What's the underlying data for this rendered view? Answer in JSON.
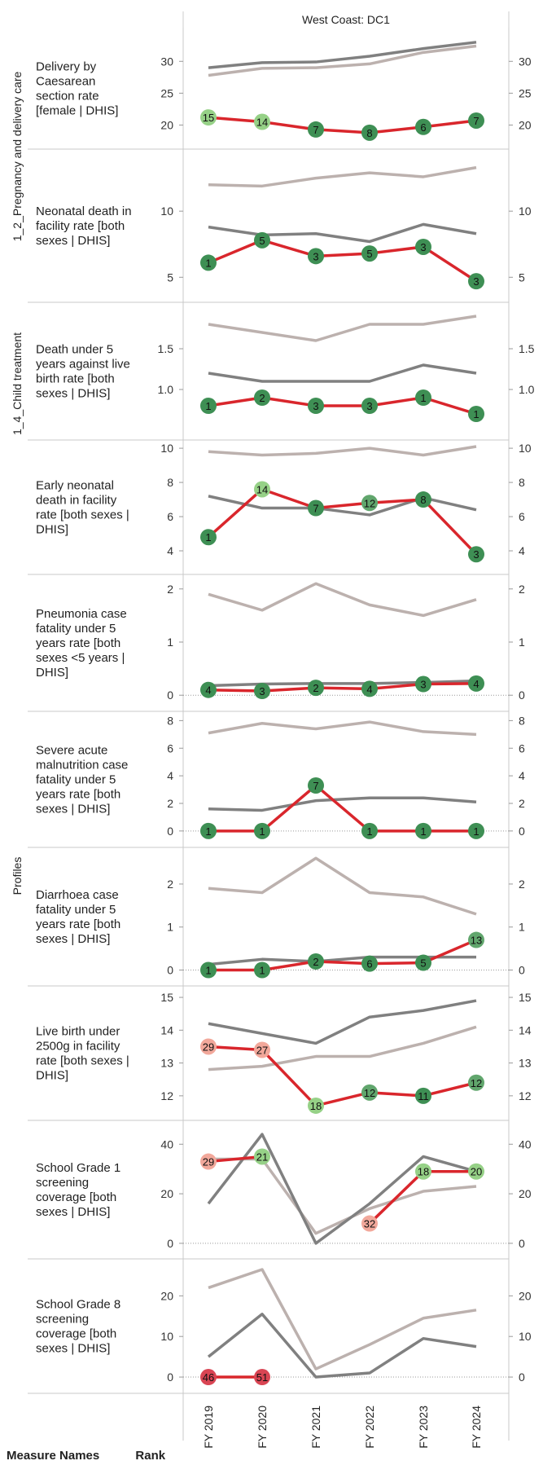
{
  "chart_data": {
    "type": "line",
    "header": "West Coast: DC1",
    "x": [
      "FY 2019",
      "FY 2020",
      "FY 2021",
      "FY 2022",
      "FY 2023",
      "FY 2024"
    ],
    "sideLabel": "Profiles",
    "groups": [
      {
        "label": "1_2_Pregnancy and delivery care",
        "rows": [
          0,
          1
        ]
      },
      {
        "label": "1_4_Child treatment",
        "rows": [
          2,
          3,
          4,
          5,
          6,
          7,
          8,
          9
        ]
      }
    ],
    "colors": {
      "district": "#d9262c",
      "darkline": "#808080",
      "lightline": "#bcb1ae",
      "rankDark": "#3e8f54",
      "rankMid": "#61a66d",
      "rankLight": "#96d187",
      "rankPink": "#f2a89b",
      "rankRed": "#d94553"
    },
    "rows": [
      {
        "title": [
          "Delivery by",
          "Caesarean",
          "section rate",
          "[female | DHIS]"
        ],
        "ticks": [
          20,
          25,
          30
        ],
        "yrange": [
          17.5,
          34
        ],
        "dark": [
          29,
          29.8,
          29.9,
          30.8,
          32,
          33
        ],
        "light": [
          27.8,
          28.9,
          29,
          29.6,
          31.4,
          32.4
        ],
        "values": [
          21.2,
          20.5,
          19.3,
          18.8,
          19.7,
          20.7
        ],
        "ranks": [
          15,
          14,
          7,
          8,
          6,
          7
        ]
      },
      {
        "title": [
          "Neonatal death in",
          "facility rate [both",
          "sexes | DHIS]"
        ],
        "ticks": [
          5,
          10
        ],
        "yrange": [
          3.6,
          14.2
        ],
        "dark": [
          8.8,
          8.2,
          8.3,
          7.7,
          9,
          8.3
        ],
        "light": [
          12,
          11.9,
          12.5,
          12.9,
          12.6,
          13.3
        ],
        "values": [
          6.1,
          7.8,
          6.6,
          6.8,
          7.3,
          4.7
        ],
        "ranks": [
          1,
          5,
          3,
          5,
          3,
          3
        ]
      },
      {
        "title": [
          "Death under 5",
          "years against live",
          "birth rate [both",
          "sexes | DHIS]"
        ],
        "ticks": [
          1.0,
          1.5
        ],
        "yrange": [
          0.5,
          1.95
        ],
        "dark": [
          1.2,
          1.1,
          1.1,
          1.1,
          1.3,
          1.2
        ],
        "light": [
          1.8,
          1.7,
          1.6,
          1.8,
          1.8,
          1.9
        ],
        "values": [
          0.8,
          0.9,
          0.8,
          0.8,
          0.9,
          0.7
        ],
        "ranks": [
          1,
          2,
          3,
          3,
          1,
          1
        ]
      },
      {
        "title": [
          "Early neonatal",
          "death in facility",
          "rate [both sexes |",
          "DHIS]"
        ],
        "ticks": [
          4,
          6,
          8,
          10
        ],
        "yrange": [
          3,
          10.1
        ],
        "dark": [
          7.2,
          6.5,
          6.5,
          6.1,
          7.1,
          6.4
        ],
        "light": [
          9.8,
          9.6,
          9.7,
          10,
          9.6,
          10.1
        ],
        "values": [
          4.8,
          7.6,
          6.5,
          6.8,
          7,
          3.8
        ],
        "ranks": [
          1,
          14,
          7,
          12,
          8,
          3
        ]
      },
      {
        "title": [
          "Pneumonia case",
          "fatality under 5",
          "years rate [both",
          "sexes <5 years |",
          "DHIS]"
        ],
        "ticks": [
          0,
          1,
          2
        ],
        "yrange": [
          -0.15,
          2.15
        ],
        "dark": [
          0.18,
          0.21,
          0.22,
          0.22,
          0.24,
          0.27
        ],
        "light": [
          1.9,
          1.6,
          2.1,
          1.7,
          1.5,
          1.8
        ],
        "values": [
          0.1,
          0.08,
          0.14,
          0.12,
          0.21,
          0.22
        ],
        "ranks": [
          4,
          3,
          2,
          4,
          3,
          4
        ]
      },
      {
        "title": [
          "Severe acute",
          "malnutrition case",
          "fatality under 5",
          "years rate [both",
          "sexes | DHIS]"
        ],
        "ticks": [
          0,
          2,
          4,
          6,
          8
        ],
        "yrange": [
          -0.6,
          8.2
        ],
        "dark": [
          1.6,
          1.5,
          2.2,
          2.4,
          2.4,
          2.1
        ],
        "light": [
          7.1,
          7.8,
          7.4,
          7.9,
          7.2,
          7
        ],
        "values": [
          0,
          0,
          3.3,
          0,
          0,
          0
        ],
        "ranks": [
          1,
          1,
          7,
          1,
          1,
          1
        ]
      },
      {
        "title": [
          "Diarrhoea case",
          "fatality under 5",
          "years rate [both",
          "sexes | DHIS]"
        ],
        "ticks": [
          0,
          1,
          2
        ],
        "yrange": [
          -0.18,
          2.7
        ],
        "dark": [
          0.13,
          0.25,
          0.2,
          0.3,
          0.3,
          0.3
        ],
        "light": [
          1.9,
          1.8,
          2.6,
          1.8,
          1.7,
          1.3
        ],
        "values": [
          0,
          0,
          0.2,
          0.15,
          0.17,
          0.7
        ],
        "ranks": [
          1,
          1,
          2,
          6,
          5,
          13
        ]
      },
      {
        "title": [
          "Live birth under",
          "2500g in facility",
          "rate [both sexes |",
          "DHIS]"
        ],
        "ticks": [
          12,
          13,
          14,
          15
        ],
        "yrange": [
          11.5,
          15.15
        ],
        "dark": [
          14.2,
          13.9,
          13.6,
          14.4,
          14.6,
          14.9
        ],
        "light": [
          12.8,
          12.9,
          13.2,
          13.2,
          13.6,
          14.1
        ],
        "values": [
          13.5,
          13.4,
          11.7,
          12.1,
          12,
          12.4
        ],
        "ranks": [
          29,
          27,
          18,
          12,
          11,
          12
        ]
      },
      {
        "title": [
          "School Grade 1",
          "screening",
          "coverage [both",
          "sexes | DHIS]"
        ],
        "ticks": [
          0,
          20,
          40
        ],
        "yrange": [
          -3,
          47
        ],
        "dark": [
          16,
          44,
          0,
          16,
          35,
          29
        ],
        "light": [
          34,
          34,
          4,
          14,
          21,
          23
        ],
        "values": [
          33,
          35,
          null,
          8,
          29,
          29
        ],
        "ranks": [
          29,
          21,
          null,
          32,
          18,
          20
        ]
      },
      {
        "title": [
          "School Grade 8",
          "screening",
          "coverage [both",
          "sexes | DHIS]"
        ],
        "ticks": [
          0,
          10,
          20
        ],
        "yrange": [
          -2,
          27.5
        ],
        "dark": [
          5,
          15.5,
          0,
          1,
          9.5,
          7.5
        ],
        "light": [
          22,
          26.5,
          2,
          8,
          14.5,
          16.5
        ],
        "values": [
          0,
          0,
          null,
          null,
          null,
          null
        ],
        "ranks": [
          46,
          51,
          null,
          null,
          null,
          null
        ]
      }
    ],
    "legend": [
      "Measure Names",
      "Rank"
    ]
  }
}
